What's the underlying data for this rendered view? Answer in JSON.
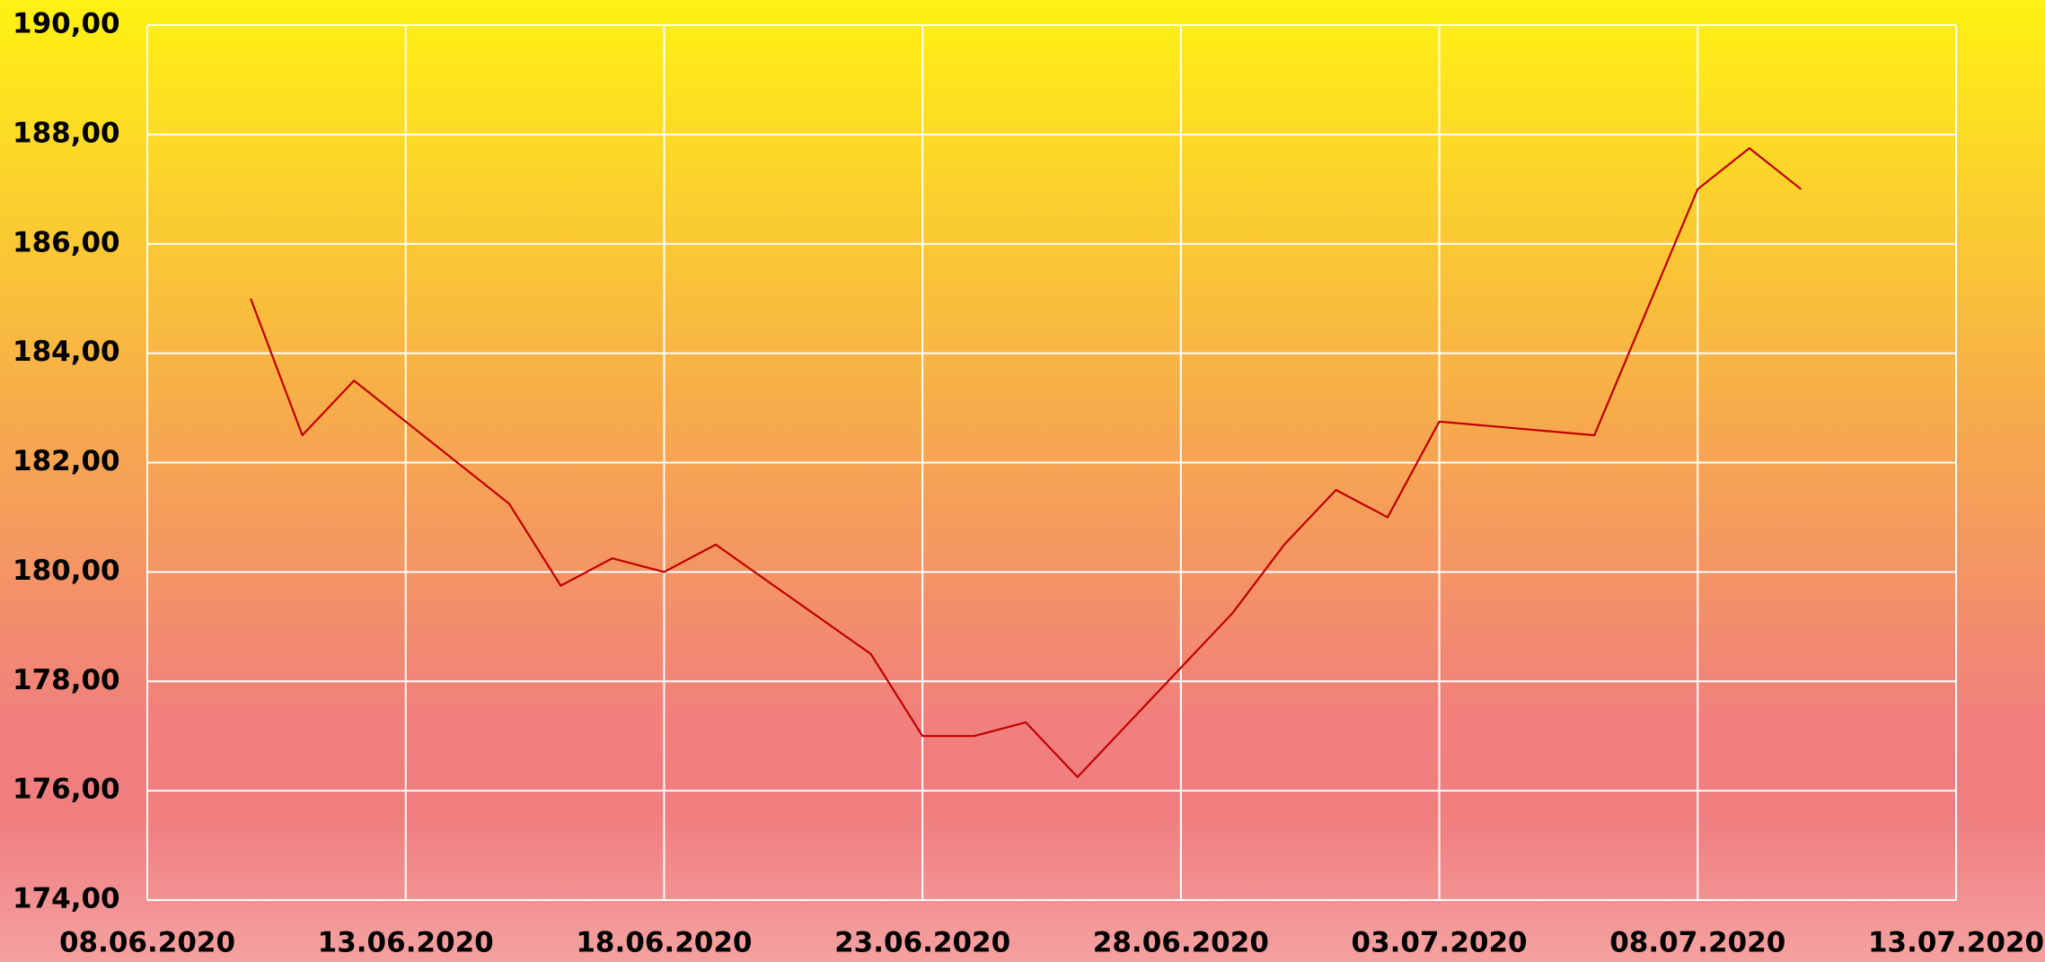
{
  "chart_data": {
    "type": "line",
    "x": [
      "10.06.2020",
      "11.06.2020",
      "12.06.2020",
      "15.06.2020",
      "16.06.2020",
      "17.06.2020",
      "18.06.2020",
      "19.06.2020",
      "22.06.2020",
      "23.06.2020",
      "24.06.2020",
      "25.06.2020",
      "26.06.2020",
      "29.06.2020",
      "30.06.2020",
      "01.07.2020",
      "02.07.2020",
      "03.07.2020",
      "06.07.2020",
      "08.07.2020",
      "09.07.2020",
      "10.07.2020"
    ],
    "series": [
      {
        "color": "#c00000",
        "values": [
          185.0,
          182.5,
          183.5,
          181.25,
          179.75,
          180.25,
          180.0,
          180.5,
          178.5,
          177.0,
          177.0,
          177.25,
          176.25,
          179.25,
          180.5,
          181.5,
          181.0,
          182.75,
          182.5,
          187.0,
          187.75,
          187.0
        ]
      }
    ],
    "xlim": [
      "08.06.2020",
      "13.07.2020"
    ],
    "xticks": [
      "08.06.2020",
      "13.06.2020",
      "18.06.2020",
      "23.06.2020",
      "28.06.2020",
      "03.07.2020",
      "08.07.2020",
      "13.07.2020"
    ],
    "ylim": [
      174,
      190
    ],
    "yticks": [
      {
        "value": 174,
        "label": "174,00"
      },
      {
        "value": 176,
        "label": "176,00"
      },
      {
        "value": 178,
        "label": "178,00"
      },
      {
        "value": 180,
        "label": "180,00"
      },
      {
        "value": 182,
        "label": "182,00"
      },
      {
        "value": 184,
        "label": "184,00"
      },
      {
        "value": 186,
        "label": "186,00"
      },
      {
        "value": 188,
        "label": "188,00"
      },
      {
        "value": 190,
        "label": "190,00"
      }
    ],
    "grid": true
  }
}
